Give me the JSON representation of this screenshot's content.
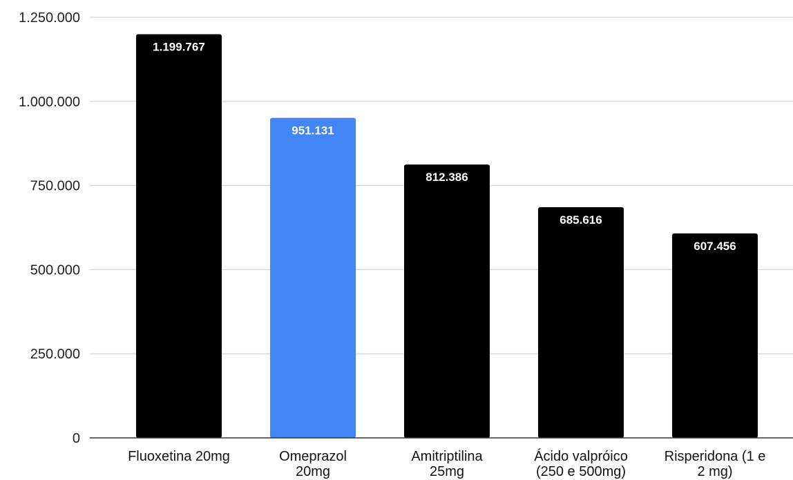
{
  "chart_data": {
    "type": "bar",
    "categories": [
      [
        "Fluoxetina 20mg"
      ],
      [
        "Omeprazol",
        "20mg"
      ],
      [
        "Amitriptilina",
        "25mg"
      ],
      [
        "Ácido valpróico",
        "(250 e 500mg)"
      ],
      [
        "Risperidona (1 e",
        "2 mg)"
      ]
    ],
    "values": [
      1199767,
      951131,
      812386,
      685616,
      607456
    ],
    "data_labels": [
      "1.199.767",
      "951.131",
      "812.386",
      "685.616",
      "607.456"
    ],
    "colors": [
      "#000000",
      "#4285f4",
      "#000000",
      "#000000",
      "#000000"
    ],
    "ylim": [
      0,
      1250000
    ],
    "yticks": [
      0,
      250000,
      500000,
      750000,
      1000000,
      1250000
    ],
    "ytick_labels": [
      "0",
      "250.000",
      "500.000",
      "750.000",
      "1.000.000",
      "1.250.000"
    ],
    "grid": true,
    "legend": "none",
    "title": "",
    "xlabel": "",
    "ylabel": ""
  }
}
